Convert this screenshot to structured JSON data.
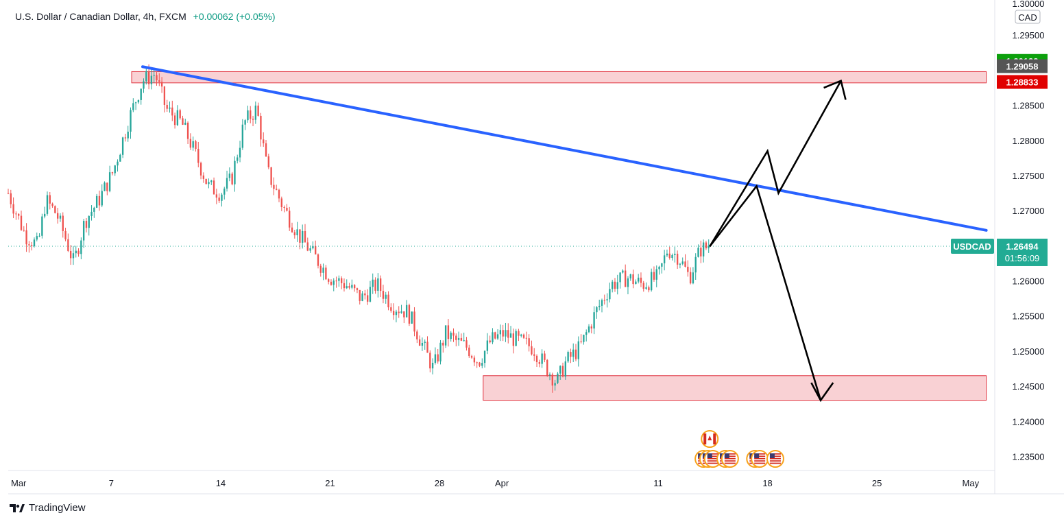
{
  "header": {
    "symbol_title": "U.S. Dollar / Canadian Dollar, 4h, FXCM",
    "change": "+0.00062 (+0.05%)"
  },
  "footer": {
    "brand": "TradingView"
  },
  "colors": {
    "up": "#26a69a",
    "down": "#ef5350",
    "trendline": "#2962ff",
    "zone_fill": "#f9d1d4",
    "zone_stroke": "#e0303d",
    "ask": "#0ca00c",
    "mid": "#555555",
    "bid": "#e00000",
    "last": "#22ab94"
  },
  "chart_data": {
    "type": "candlestick",
    "title": "U.S. Dollar / Canadian Dollar, 4h, FXCM",
    "currency_label": "CAD",
    "ylim": [
      1.233,
      1.3
    ],
    "y_ticks": [
      "1.29500",
      "1.28500",
      "1.28000",
      "1.27500",
      "1.27000",
      "1.26000",
      "1.25500",
      "1.25000",
      "1.24500",
      "1.24000",
      "1.23500"
    ],
    "y_tick_values": [
      1.295,
      1.285,
      1.28,
      1.275,
      1.27,
      1.26,
      1.255,
      1.25,
      1.245,
      1.24,
      1.235
    ],
    "x_ticks": [
      "Mar",
      "7",
      "14",
      "21",
      "28",
      "Apr",
      "11",
      "18",
      "25",
      "May"
    ],
    "x_tick_days": [
      1,
      7,
      14,
      21,
      28,
      32,
      42,
      49,
      56,
      62
    ],
    "xlim_days": [
      0.4,
      63.5
    ],
    "price_labels": [
      {
        "label": "1.29133",
        "value": 1.29133,
        "kind": "ask"
      },
      {
        "label": "1.29058",
        "value": 1.29058,
        "kind": "mid"
      },
      {
        "label": "1.28833",
        "value": 1.28833,
        "kind": "bid"
      }
    ],
    "last_price": {
      "symbol": "USDCAD",
      "value": "1.26494",
      "price": 1.26494,
      "countdown": "01:56:09"
    },
    "price_path": [
      [
        0.4,
        1.2725
      ],
      [
        1.5,
        1.2665
      ],
      [
        2.3,
        1.265
      ],
      [
        2.8,
        1.2715
      ],
      [
        3.5,
        1.2695
      ],
      [
        4.0,
        1.2665
      ],
      [
        4.6,
        1.2625
      ],
      [
        5.3,
        1.2685
      ],
      [
        6.2,
        1.2715
      ],
      [
        7.1,
        1.2755
      ],
      [
        8.2,
        1.2835
      ],
      [
        9.0,
        1.2885
      ],
      [
        9.8,
        1.2895
      ],
      [
        10.5,
        1.2845
      ],
      [
        11.5,
        1.2825
      ],
      [
        12.3,
        1.2785
      ],
      [
        13.2,
        1.2735
      ],
      [
        14.0,
        1.2725
      ],
      [
        14.7,
        1.2745
      ],
      [
        15.5,
        1.2825
      ],
      [
        16.3,
        1.2845
      ],
      [
        17.0,
        1.2755
      ],
      [
        18.0,
        1.2705
      ],
      [
        19.0,
        1.2665
      ],
      [
        20.0,
        1.2635
      ],
      [
        21.0,
        1.2605
      ],
      [
        22.0,
        1.2595
      ],
      [
        23.0,
        1.2575
      ],
      [
        24.0,
        1.2595
      ],
      [
        25.0,
        1.2565
      ],
      [
        26.0,
        1.2555
      ],
      [
        27.0,
        1.2505
      ],
      [
        27.6,
        1.2475
      ],
      [
        28.4,
        1.2525
      ],
      [
        29.0,
        1.2515
      ],
      [
        29.8,
        1.2505
      ],
      [
        30.5,
        1.2485
      ],
      [
        31.3,
        1.2515
      ],
      [
        32.1,
        1.2525
      ],
      [
        33.0,
        1.2515
      ],
      [
        34.0,
        1.2505
      ],
      [
        34.9,
        1.2475
      ],
      [
        35.5,
        1.2455
      ],
      [
        36.1,
        1.2485
      ],
      [
        37.0,
        1.2505
      ],
      [
        38.0,
        1.2555
      ],
      [
        39.0,
        1.2595
      ],
      [
        40.0,
        1.2605
      ],
      [
        41.0,
        1.2595
      ],
      [
        42.0,
        1.2605
      ],
      [
        42.6,
        1.2645
      ],
      [
        43.3,
        1.2635
      ],
      [
        44.0,
        1.2605
      ],
      [
        44.7,
        1.2645
      ],
      [
        45.3,
        1.2649
      ]
    ],
    "trendline": {
      "from": [
        9.0,
        1.2905
      ],
      "to": [
        63.0,
        1.2672
      ]
    },
    "zones": [
      {
        "name": "resistance",
        "x": [
          8.3,
          63.0
        ],
        "y": [
          1.2882,
          1.2898
        ]
      },
      {
        "name": "support",
        "x": [
          30.8,
          63.0
        ],
        "y": [
          1.243,
          1.2465
        ]
      }
    ],
    "projection_paths": [
      {
        "name": "bullish",
        "points": [
          [
            45.3,
            1.2649
          ],
          [
            49.0,
            1.2785
          ],
          [
            49.7,
            1.2725
          ],
          [
            53.7,
            1.2885
          ]
        ],
        "arrowhead": [
          [
            52.6,
            1.2875
          ],
          [
            53.7,
            1.2885
          ],
          [
            54.0,
            1.2858
          ]
        ]
      },
      {
        "name": "bearish",
        "points": [
          [
            45.3,
            1.2649
          ],
          [
            48.3,
            1.2735
          ],
          [
            52.4,
            1.243
          ]
        ],
        "arrowhead": [
          [
            51.8,
            1.2455
          ],
          [
            52.4,
            1.243
          ],
          [
            53.2,
            1.2455
          ]
        ]
      }
    ],
    "events": {
      "canada": [
        [
          45.3,
          1
        ]
      ],
      "us": [
        [
          44.9,
          2
        ],
        [
          45.2,
          2
        ],
        [
          45.5,
          2
        ],
        [
          46.3,
          2
        ],
        [
          46.6,
          2
        ],
        [
          48.2,
          2
        ],
        [
          48.5,
          2
        ],
        [
          49.5,
          2
        ]
      ]
    }
  }
}
